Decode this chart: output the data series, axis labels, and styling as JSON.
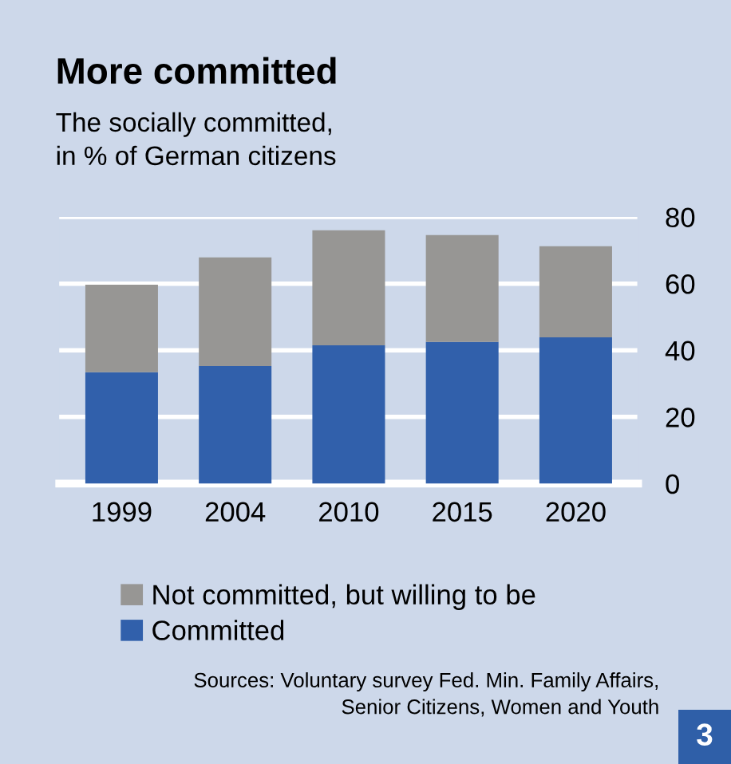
{
  "chart_data": {
    "type": "bar",
    "stacked": true,
    "title": "More committed",
    "subtitle": "The socially committed,\nin % of German citizens",
    "categories": [
      "1999",
      "2004",
      "2010",
      "2015",
      "2020"
    ],
    "series": [
      {
        "name": "Committed",
        "color": "#3160ab",
        "values": [
          33.4,
          35.3,
          41.5,
          42.5,
          43.9
        ]
      },
      {
        "name": "Not committed, but willing to be",
        "color": "#979694",
        "values": [
          26.3,
          32.6,
          34.5,
          32.1,
          27.3
        ]
      }
    ],
    "ylim": [
      0,
      80
    ],
    "yticks": [
      0,
      20,
      40,
      60,
      80
    ],
    "grid": "y",
    "legend": "bottom",
    "annotations": [
      "Sources: Voluntary survey Fed. Min. Family Affairs,\nSenior Citizens, Women and Youth",
      "3"
    ]
  }
}
